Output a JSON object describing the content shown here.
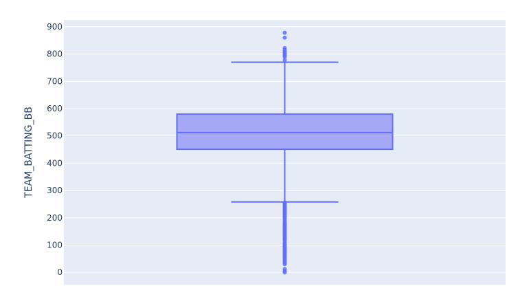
{
  "chart_data": {
    "type": "box",
    "title": "",
    "xlabel": "",
    "ylabel": "TEAM_BATTING_BB",
    "ylim": [
      -45,
      925
    ],
    "y_ticks": [
      0,
      100,
      200,
      300,
      400,
      500,
      600,
      700,
      800,
      900
    ],
    "grid": true,
    "colors": {
      "plot_background": "#e5ecf6",
      "grid": "#ffffff",
      "box_fill": "#a4a8f5",
      "box_line": "#636efa",
      "tick_text": "#2a3f5f"
    },
    "series": [
      {
        "min": 0,
        "q1": 451,
        "median": 512,
        "q3": 580,
        "max": 878,
        "lower_fence": 258,
        "upper_fence": 770,
        "outliers": [
          878,
          860,
          822,
          815,
          810,
          804,
          800,
          795,
          790,
          778,
          256,
          252,
          248,
          245,
          240,
          236,
          232,
          228,
          224,
          220,
          216,
          212,
          208,
          204,
          200,
          194,
          188,
          182,
          178,
          174,
          170,
          166,
          162,
          158,
          154,
          150,
          146,
          142,
          138,
          134,
          130,
          126,
          122,
          118,
          112,
          106,
          102,
          98,
          94,
          90,
          86,
          82,
          78,
          74,
          70,
          66,
          62,
          58,
          54,
          50,
          45,
          40,
          35,
          30,
          12,
          5,
          0
        ]
      }
    ]
  }
}
